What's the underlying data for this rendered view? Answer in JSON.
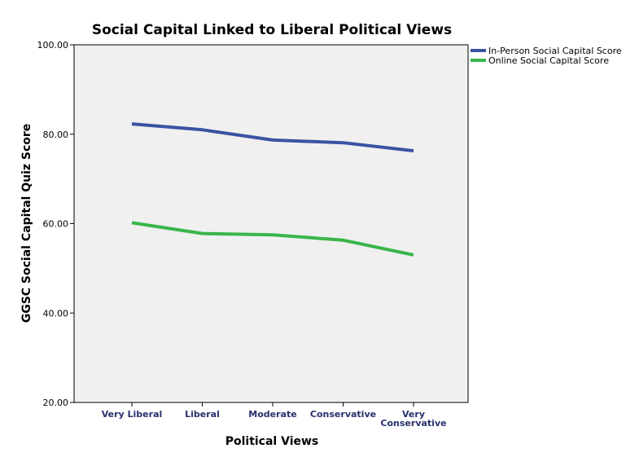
{
  "chart_data": {
    "type": "line",
    "title": "Social Capital Linked to Liberal Political Views",
    "xlabel": "Political Views",
    "ylabel": "GGSC Social Capital Quiz Score",
    "categories": [
      [
        "Very Liberal"
      ],
      [
        "Liberal"
      ],
      [
        "Moderate"
      ],
      [
        "Conservative"
      ],
      [
        "Very",
        "Conservative"
      ]
    ],
    "ylim": [
      20,
      100
    ],
    "yticks": [
      "20.00",
      "40.00",
      "60.00",
      "80.00",
      "100.00"
    ],
    "ytick_values": [
      20,
      40,
      60,
      80,
      100
    ],
    "grid": false,
    "legend_position": "top-right",
    "series": [
      {
        "name": "In-Person Social Capital Score",
        "color": "#3b53a4",
        "values": [
          82.3,
          81.0,
          78.7,
          78.1,
          76.3
        ]
      },
      {
        "name": "Online Social Capital Score",
        "color": "#3ab54a",
        "values": [
          60.2,
          57.8,
          57.5,
          56.3,
          53.0
        ]
      }
    ],
    "plot_background": "#f0f0f0"
  }
}
